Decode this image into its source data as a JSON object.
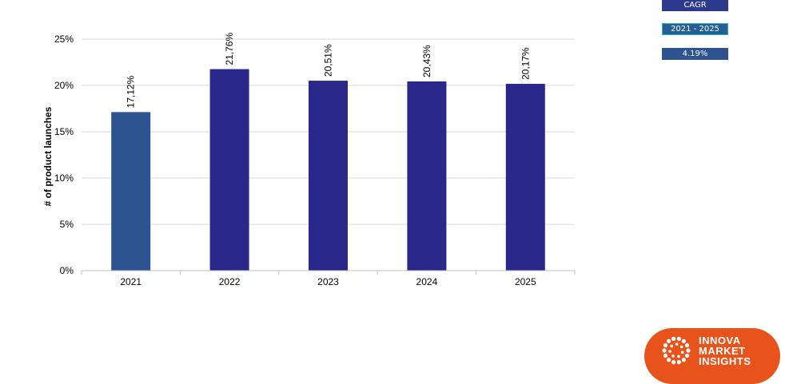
{
  "chart_data": {
    "type": "bar",
    "categories": [
      "2021",
      "2022",
      "2023",
      "2024",
      "2025"
    ],
    "values": [
      17.12,
      21.76,
      20.51,
      20.43,
      20.17
    ],
    "data_labels": [
      "17,12%",
      "21,76%",
      "20,51%",
      "20,43%",
      "20,17%"
    ],
    "ylabel": "# of product launches",
    "xlabel": "",
    "title": "",
    "ylim": [
      0,
      25
    ],
    "yticks": [
      0,
      5,
      10,
      15,
      20,
      25
    ],
    "ytick_labels": [
      "0%",
      "5%",
      "10%",
      "15%",
      "20%",
      "25%"
    ],
    "grid": true,
    "bar_colors": [
      "#2d5390",
      "#29288a",
      "#29288a",
      "#29288a",
      "#29288a"
    ]
  },
  "cagr": {
    "title": "CAGR",
    "period": "2021 - 2025",
    "value": "4.19%"
  },
  "logo": {
    "line1": "INNOVA",
    "line2": "MARKET",
    "line3": "INSIGHTS",
    "color": "#e8531c"
  }
}
